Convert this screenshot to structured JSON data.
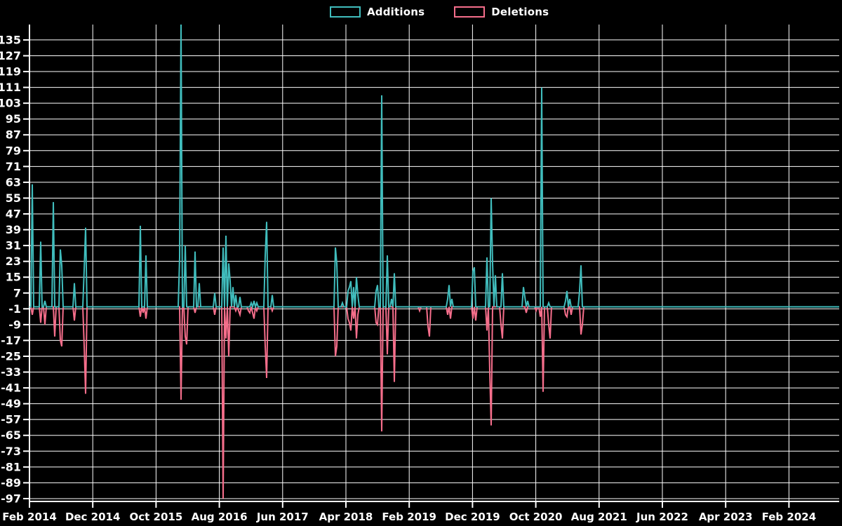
{
  "chart_data": {
    "type": "line",
    "title": "",
    "xlabel": "",
    "ylabel": "",
    "background": "#000000",
    "grid": true,
    "grid_color": "#ffffff",
    "text_color": "#ffffff",
    "legend_position": "top-center",
    "baseline_value": 0,
    "ylim": [
      -98.5,
      143
    ],
    "y_ticks": [
      135,
      127,
      119,
      111,
      103,
      95,
      87,
      79,
      71,
      63,
      55,
      47,
      39,
      31,
      23,
      15,
      7,
      -1,
      -9,
      -17,
      -25,
      -33,
      -41,
      -49,
      -57,
      -65,
      -73,
      -81,
      -89,
      -97
    ],
    "x_tick_labels": [
      "Feb 2014",
      "Dec 2014",
      "Oct 2015",
      "Aug 2016",
      "Jun 2017",
      "Apr 2018",
      "Feb 2019",
      "Dec 2019",
      "Oct 2020",
      "Aug 2021",
      "Jun 2022",
      "Apr 2023",
      "Feb 2024"
    ],
    "note": "Weekly additions/deletions spikes; value is 0 between spikes. Each spike: [plot_x_px, value, approx_month]. The 2016-02 additions spike is clipped at the top of the plot.",
    "series": [
      {
        "name": "Deletions",
        "color": "#f56e8b",
        "spikes": [
          [
            45,
            -4,
            "2014-02"
          ],
          [
            58,
            -8,
            "2014-04"
          ],
          [
            64,
            -9,
            "2014-04"
          ],
          [
            78,
            -15,
            "2014-06"
          ],
          [
            86,
            -17,
            "2014-07"
          ],
          [
            88,
            -20,
            "2014-07"
          ],
          [
            106,
            -7,
            "2014-09"
          ],
          [
            120,
            -20,
            "2014-11"
          ],
          [
            122,
            -44,
            "2014-11"
          ],
          [
            200,
            -5,
            "2015-07"
          ],
          [
            203,
            -3,
            "2015-08"
          ],
          [
            208,
            -6,
            "2015-08"
          ],
          [
            258,
            -47,
            "2016-02"
          ],
          [
            263,
            -15,
            "2016-02"
          ],
          [
            266,
            -19,
            "2016-03"
          ],
          [
            278,
            -3,
            "2016-04"
          ],
          [
            305,
            -4,
            "2016-07"
          ],
          [
            318,
            -97,
            "2016-08"
          ],
          [
            322,
            -16,
            "2016-09"
          ],
          [
            326,
            -25,
            "2016-09"
          ],
          [
            336,
            -2,
            "2016-10"
          ],
          [
            339,
            -2,
            "2016-11"
          ],
          [
            342,
            -4,
            "2016-11"
          ],
          [
            353,
            -2,
            "2016-12"
          ],
          [
            356,
            -3,
            "2017-01"
          ],
          [
            359,
            -3,
            "2017-01"
          ],
          [
            362,
            -6,
            "2017-01"
          ],
          [
            365,
            -2,
            "2017-02"
          ],
          [
            377,
            -20,
            "2017-03"
          ],
          [
            380,
            -36,
            "2017-03"
          ],
          [
            388,
            -2,
            "2017-04"
          ],
          [
            477,
            -25,
            "2018-02"
          ],
          [
            479,
            -20,
            "2018-02"
          ],
          [
            495,
            -6,
            "2018-04"
          ],
          [
            497,
            -8,
            "2018-04"
          ],
          [
            500,
            -12,
            "2018-05"
          ],
          [
            503,
            -6,
            "2018-05"
          ],
          [
            507,
            -16,
            "2018-05"
          ],
          [
            510,
            -4,
            "2018-06"
          ],
          [
            535,
            -8,
            "2018-08"
          ],
          [
            538,
            -9,
            "2018-09"
          ],
          [
            543,
            -63,
            "2018-09"
          ],
          [
            552,
            -24,
            "2018-10"
          ],
          [
            562,
            -38,
            "2018-11"
          ],
          [
            598,
            -2,
            "2019-03"
          ],
          [
            609,
            -10,
            "2019-05"
          ],
          [
            612,
            -15,
            "2019-05"
          ],
          [
            638,
            -4,
            "2019-08"
          ],
          [
            641,
            -6,
            "2019-08"
          ],
          [
            674,
            -6,
            "2019-12"
          ],
          [
            677,
            -7,
            "2019-12"
          ],
          [
            694,
            -12,
            "2020-02"
          ],
          [
            697,
            -33,
            "2020-02"
          ],
          [
            699,
            -60,
            "2020-03"
          ],
          [
            714,
            -9,
            "2020-04"
          ],
          [
            716,
            -16,
            "2020-04"
          ],
          [
            750,
            -3,
            "2020-08"
          ],
          [
            764,
            -2,
            "2020-10"
          ],
          [
            770,
            -5,
            "2020-10"
          ],
          [
            773,
            -43,
            "2020-11"
          ],
          [
            781,
            -9,
            "2020-12"
          ],
          [
            783,
            -16,
            "2020-12"
          ],
          [
            805,
            -4,
            "2021-02"
          ],
          [
            808,
            -5,
            "2021-03"
          ],
          [
            813,
            -4,
            "2021-03"
          ],
          [
            828,
            -14,
            "2021-05"
          ],
          [
            830,
            -9,
            "2021-05"
          ]
        ]
      },
      {
        "name": "Additions",
        "color": "#40bdbd",
        "spikes": [
          [
            45,
            62,
            "2014-02"
          ],
          [
            58,
            33,
            "2014-04"
          ],
          [
            64,
            3,
            "2014-04"
          ],
          [
            76,
            53,
            "2014-06"
          ],
          [
            85,
            29,
            "2014-07"
          ],
          [
            87,
            21,
            "2014-07"
          ],
          [
            106,
            12,
            "2014-09"
          ],
          [
            120,
            19,
            "2014-11"
          ],
          [
            122,
            40,
            "2014-11"
          ],
          [
            200,
            41,
            "2015-07"
          ],
          [
            208,
            26,
            "2015-08"
          ],
          [
            256,
            25,
            "2016-01"
          ],
          [
            258,
            144,
            "2016-02"
          ],
          [
            263,
            31,
            "2016-02"
          ],
          [
            278,
            28,
            "2016-04"
          ],
          [
            283,
            12,
            "2016-05"
          ],
          [
            305,
            7,
            "2016-07"
          ],
          [
            318,
            30,
            "2016-08"
          ],
          [
            322,
            36,
            "2016-09"
          ],
          [
            325,
            22,
            "2016-09"
          ],
          [
            328,
            13,
            "2016-10"
          ],
          [
            331,
            10,
            "2016-10"
          ],
          [
            336,
            6,
            "2016-10"
          ],
          [
            342,
            5,
            "2016-11"
          ],
          [
            357,
            2,
            "2017-01"
          ],
          [
            361,
            3,
            "2017-01"
          ],
          [
            365,
            2,
            "2017-02"
          ],
          [
            377,
            26,
            "2017-03"
          ],
          [
            380,
            43,
            "2017-03"
          ],
          [
            387,
            6,
            "2017-04"
          ],
          [
            477,
            30,
            "2018-02"
          ],
          [
            479,
            22,
            "2018-02"
          ],
          [
            488,
            2,
            "2018-03"
          ],
          [
            495,
            8,
            "2018-04"
          ],
          [
            497,
            10,
            "2018-04"
          ],
          [
            500,
            13,
            "2018-05"
          ],
          [
            503,
            10,
            "2018-05"
          ],
          [
            507,
            15,
            "2018-05"
          ],
          [
            510,
            6,
            "2018-06"
          ],
          [
            535,
            8,
            "2018-08"
          ],
          [
            538,
            11,
            "2018-09"
          ],
          [
            543,
            107,
            "2018-09"
          ],
          [
            552,
            26,
            "2018-10"
          ],
          [
            557,
            4,
            "2018-11"
          ],
          [
            562,
            17,
            "2018-11"
          ],
          [
            637,
            4,
            "2019-08"
          ],
          [
            640,
            11,
            "2019-08"
          ],
          [
            643,
            4,
            "2019-08"
          ],
          [
            674,
            18,
            "2019-12"
          ],
          [
            676,
            20,
            "2019-12"
          ],
          [
            694,
            25,
            "2020-02"
          ],
          [
            700,
            55,
            "2020-03"
          ],
          [
            702,
            22,
            "2020-03"
          ],
          [
            705,
            16,
            "2020-03"
          ],
          [
            715,
            17,
            "2020-04"
          ],
          [
            746,
            10,
            "2020-08"
          ],
          [
            748,
            5,
            "2020-08"
          ],
          [
            751,
            3,
            "2020-08"
          ],
          [
            772,
            111,
            "2020-11"
          ],
          [
            782,
            2,
            "2020-12"
          ],
          [
            805,
            3,
            "2021-02"
          ],
          [
            807,
            8,
            "2021-03"
          ],
          [
            812,
            4,
            "2021-03"
          ],
          [
            826,
            8,
            "2021-05"
          ],
          [
            828,
            21,
            "2021-05"
          ]
        ]
      }
    ]
  },
  "legend": {
    "additions_label": "Additions",
    "deletions_label": "Deletions"
  }
}
